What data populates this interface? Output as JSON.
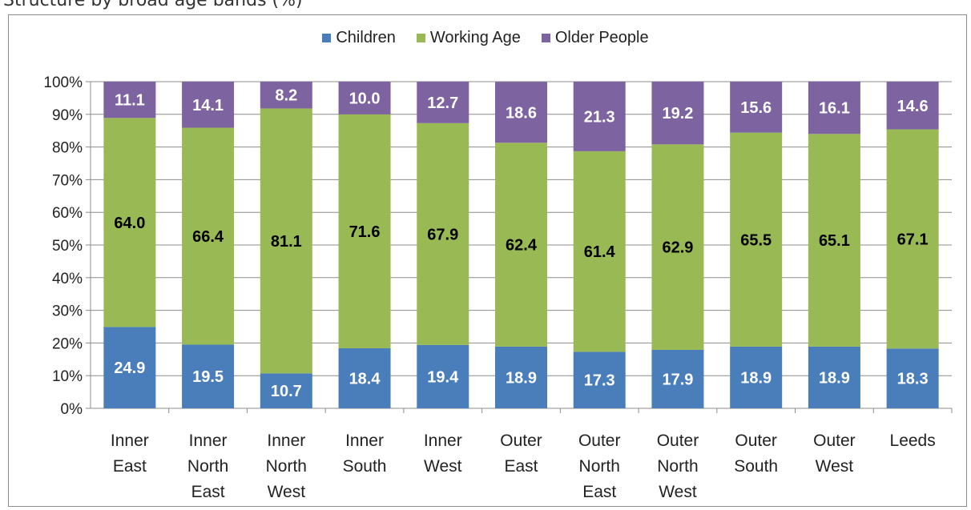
{
  "page_title": "Structure by broad age bands (%)",
  "colors": {
    "children": "#4a7ebb",
    "working": "#98b954",
    "older": "#7e63a1",
    "grid": "#8c8c8c"
  },
  "chart_data": {
    "type": "bar",
    "stacked": true,
    "percent_stacked": true,
    "categories": [
      [
        "Inner",
        "East"
      ],
      [
        "Inner",
        "North",
        "East"
      ],
      [
        "Inner",
        "North",
        "West"
      ],
      [
        "Inner",
        "South"
      ],
      [
        "Inner",
        "West"
      ],
      [
        "Outer",
        "East"
      ],
      [
        "Outer",
        "North",
        "East"
      ],
      [
        "Outer",
        "North",
        "West"
      ],
      [
        "Outer",
        "South"
      ],
      [
        "Outer",
        "West"
      ],
      [
        "Leeds"
      ]
    ],
    "series": [
      {
        "name": "Children",
        "values": [
          24.9,
          19.5,
          10.7,
          18.4,
          19.4,
          18.9,
          17.3,
          17.9,
          18.9,
          18.9,
          18.3
        ]
      },
      {
        "name": "Working Age",
        "values": [
          64.0,
          66.4,
          81.1,
          71.6,
          67.9,
          62.4,
          61.4,
          62.9,
          65.5,
          65.1,
          67.1
        ]
      },
      {
        "name": "Older People",
        "values": [
          11.1,
          14.1,
          8.2,
          10.0,
          12.7,
          18.6,
          21.3,
          19.2,
          15.6,
          16.1,
          14.6
        ]
      }
    ],
    "y_ticks": [
      "0%",
      "10%",
      "20%",
      "30%",
      "40%",
      "50%",
      "60%",
      "70%",
      "80%",
      "90%",
      "100%"
    ],
    "ylim": [
      0,
      100
    ],
    "grid": true,
    "legend_position": "top-center"
  }
}
